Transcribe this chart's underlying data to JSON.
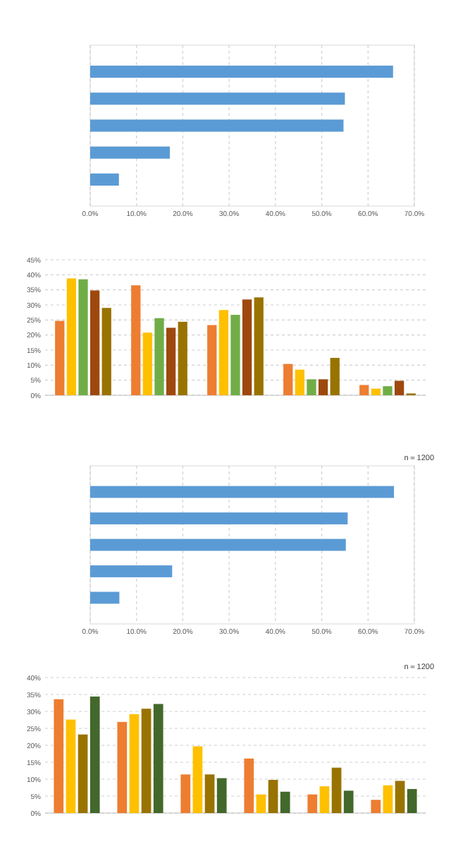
{
  "chart_data": [
    {
      "type": "bar",
      "orientation": "horizontal",
      "categories": [
        null,
        null,
        null,
        null,
        null
      ],
      "values": [
        65.4,
        55.0,
        54.7,
        17.2,
        6.2
      ],
      "color": "#5b9bd5",
      "xlim": [
        0,
        70
      ],
      "xticks": [
        {
          "value": 0,
          "label": "0.0%"
        },
        {
          "value": 10,
          "label": "10.0%"
        },
        {
          "value": 20,
          "label": "20.0%"
        },
        {
          "value": 30,
          "label": "30.0%"
        },
        {
          "value": 40,
          "label": "40.0%"
        },
        {
          "value": 50,
          "label": "50.0%"
        },
        {
          "value": 60,
          "label": "60.0%"
        },
        {
          "value": 70,
          "label": "70.0%"
        }
      ],
      "grid": "x"
    },
    {
      "type": "bar",
      "categories": [
        null,
        null,
        null,
        null,
        null
      ],
      "series": [
        {
          "color": "#ed7d31",
          "values": [
            24.7,
            36.5,
            23.3,
            10.4,
            3.4
          ]
        },
        {
          "color": "#ffc000",
          "values": [
            38.8,
            20.8,
            28.3,
            8.5,
            2.2
          ]
        },
        {
          "color": "#70ad47",
          "values": [
            38.5,
            25.6,
            26.7,
            5.3,
            3.0
          ]
        },
        {
          "color": "#9e480e",
          "values": [
            34.8,
            22.4,
            31.8,
            5.3,
            4.8
          ]
        },
        {
          "color": "#997300",
          "values": [
            29.0,
            24.4,
            32.5,
            12.4,
            0.6
          ]
        }
      ],
      "ylim": [
        0,
        45
      ],
      "yticks": [
        {
          "value": 0,
          "label": "0%"
        },
        {
          "value": 5,
          "label": "5%"
        },
        {
          "value": 10,
          "label": "10%"
        },
        {
          "value": 15,
          "label": "15%"
        },
        {
          "value": 20,
          "label": "20%"
        },
        {
          "value": 25,
          "label": "25%"
        },
        {
          "value": 30,
          "label": "30%"
        },
        {
          "value": 35,
          "label": "35%"
        },
        {
          "value": 40,
          "label": "40%"
        },
        {
          "value": 45,
          "label": "45%"
        }
      ],
      "grid": "y"
    },
    {
      "type": "bar",
      "orientation": "horizontal",
      "categories": [
        null,
        null,
        null,
        null,
        null
      ],
      "values": [
        65.6,
        55.6,
        55.2,
        17.7,
        6.3
      ],
      "color": "#5b9bd5",
      "xlim": [
        0,
        70
      ],
      "xticks": [
        {
          "value": 0,
          "label": "0.0%"
        },
        {
          "value": 10,
          "label": "10.0%"
        },
        {
          "value": 20,
          "label": "20.0%"
        },
        {
          "value": 30,
          "label": "30.0%"
        },
        {
          "value": 40,
          "label": "40.0%"
        },
        {
          "value": 50,
          "label": "50.0%"
        },
        {
          "value": 60,
          "label": "60.0%"
        },
        {
          "value": 70,
          "label": "70.0%"
        }
      ],
      "grid": "x",
      "annotations": [
        "n＝1200"
      ]
    },
    {
      "type": "bar",
      "categories": [
        null,
        null,
        null,
        null,
        null,
        null
      ],
      "series": [
        {
          "color": "#ed7d31",
          "values": [
            33.6,
            26.9,
            11.4,
            16.1,
            5.5,
            3.9
          ]
        },
        {
          "color": "#ffc000",
          "values": [
            27.6,
            29.2,
            19.7,
            5.5,
            7.9,
            8.2
          ]
        },
        {
          "color": "#997300",
          "values": [
            23.2,
            30.8,
            11.4,
            9.8,
            13.4,
            9.5
          ]
        },
        {
          "color": "#43682b",
          "values": [
            34.4,
            32.2,
            10.3,
            6.3,
            6.6,
            7.1
          ]
        }
      ],
      "ylim": [
        0,
        40
      ],
      "yticks": [
        {
          "value": 0,
          "label": "0%"
        },
        {
          "value": 5,
          "label": "5%"
        },
        {
          "value": 10,
          "label": "10%"
        },
        {
          "value": 15,
          "label": "15%"
        },
        {
          "value": 20,
          "label": "20%"
        },
        {
          "value": 25,
          "label": "25%"
        },
        {
          "value": 30,
          "label": "30%"
        },
        {
          "value": 35,
          "label": "35%"
        },
        {
          "value": 40,
          "label": "40%"
        }
      ],
      "grid": "y",
      "annotations": [
        "n＝1200"
      ]
    }
  ]
}
